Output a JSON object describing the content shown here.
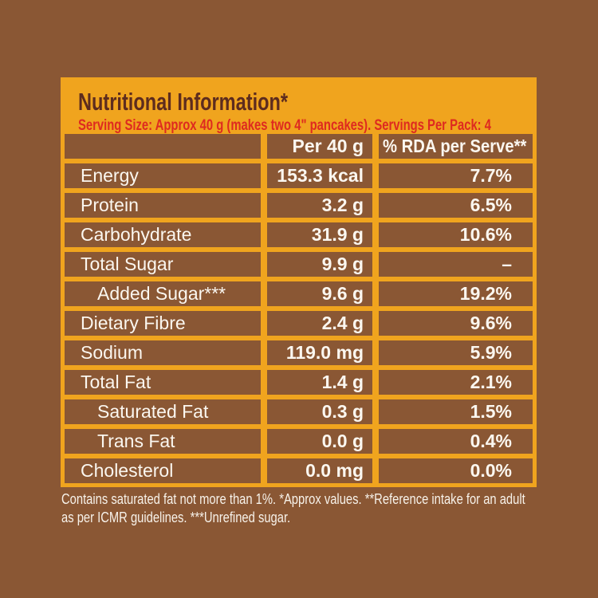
{
  "colors": {
    "page-bg": "#8A5734",
    "panel-bg": "#F0A41E",
    "cell-bg": "#8A5734",
    "cell-text": "#FBF7F0",
    "title": "#5D2C1E",
    "subtitle": "#DE2A20",
    "footer-text": "#F7F2EA"
  },
  "header": {
    "title": "Nutritional Information*",
    "subtitle": "Serving Size: Approx 40 g (makes two 4\" pancakes). Servings Per Pack: 4"
  },
  "table": {
    "columns": [
      "",
      "Per 40 g",
      "% RDA per Serve**"
    ],
    "rows": [
      {
        "label": "Energy",
        "amount": "153.3 kcal",
        "rda": "7.7%",
        "indent": false
      },
      {
        "label": "Protein",
        "amount": "3.2 g",
        "rda": "6.5%",
        "indent": false
      },
      {
        "label": "Carbohydrate",
        "amount": "31.9 g",
        "rda": "10.6%",
        "indent": false
      },
      {
        "label": "Total Sugar",
        "amount": "9.9 g",
        "rda": "–",
        "indent": false
      },
      {
        "label": "Added Sugar***",
        "amount": "9.6 g",
        "rda": "19.2%",
        "indent": true
      },
      {
        "label": "Dietary Fibre",
        "amount": "2.4 g",
        "rda": "9.6%",
        "indent": false
      },
      {
        "label": "Sodium",
        "amount": "119.0 mg",
        "rda": "5.9%",
        "indent": false
      },
      {
        "label": "Total Fat",
        "amount": "1.4 g",
        "rda": "2.1%",
        "indent": false
      },
      {
        "label": "Saturated Fat",
        "amount": "0.3 g",
        "rda": "1.5%",
        "indent": true
      },
      {
        "label": "Trans Fat",
        "amount": "0.0 g",
        "rda": "0.4%",
        "indent": true
      },
      {
        "label": "Cholesterol",
        "amount": "0.0 mg",
        "rda": "0.0%",
        "indent": false
      }
    ]
  },
  "footer": {
    "line1": "Contains saturated fat not more than 1%. *Approx values. **Reference intake for an adult",
    "line2": "as per ICMR guidelines. ***Unrefined sugar."
  }
}
